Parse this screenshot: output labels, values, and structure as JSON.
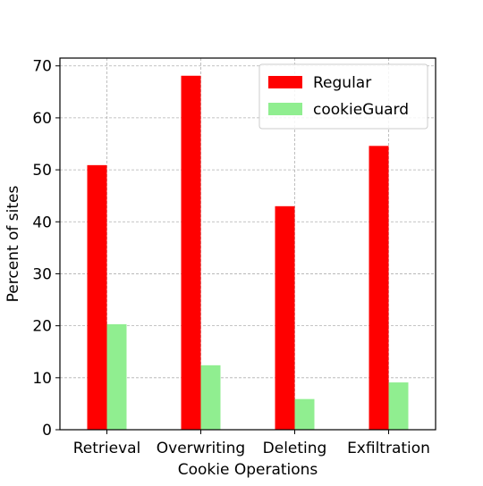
{
  "chart_data": {
    "type": "bar",
    "title": "",
    "xlabel": "Cookie Operations",
    "ylabel": "Percent of sites",
    "categories": [
      "Retrieval",
      "Overwriting",
      "Deleting",
      "Exfiltration"
    ],
    "series": [
      {
        "name": "Regular",
        "color": "#ff0000",
        "values": [
          50.9,
          68.1,
          43.0,
          54.6
        ]
      },
      {
        "name": "cookieGuard",
        "color": "#90ee90",
        "values": [
          20.3,
          12.4,
          5.9,
          9.1
        ]
      }
    ],
    "ylim": [
      0,
      71.5
    ],
    "yticks": [
      0,
      10,
      20,
      30,
      40,
      50,
      60,
      70
    ],
    "grid": true,
    "legend_position": "top-right"
  }
}
